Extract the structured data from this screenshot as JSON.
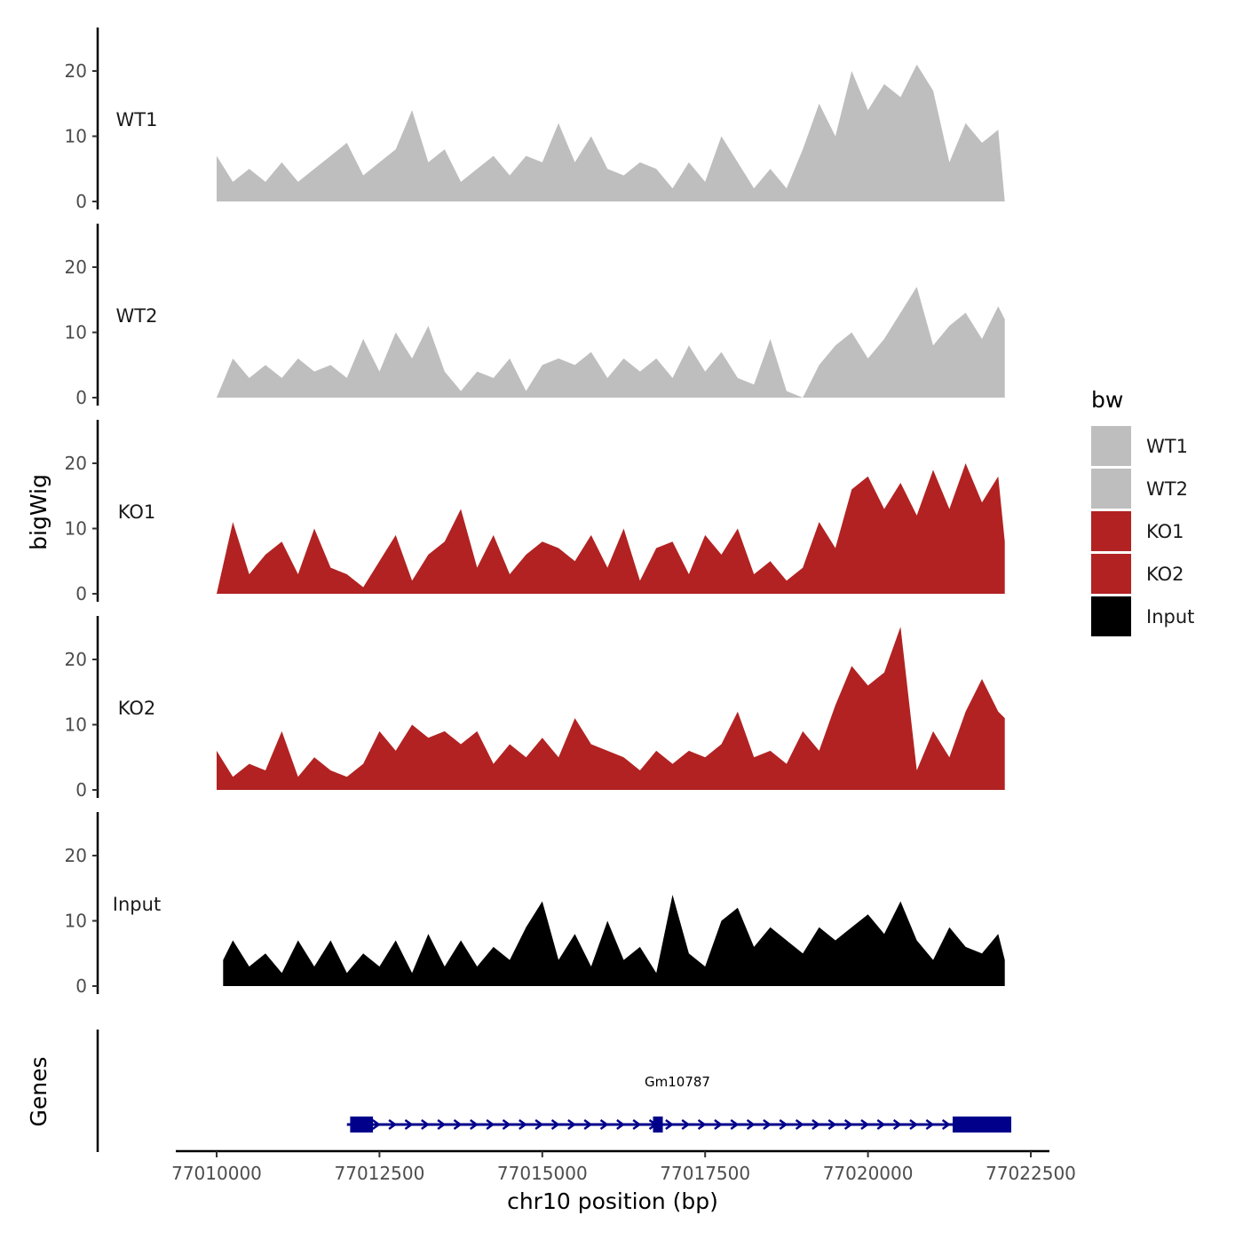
{
  "chart_data": {
    "type": "area",
    "ylabel": "bigWig",
    "xlabel": "chr10 position (bp)",
    "xlim": [
      77009750,
      77022750
    ],
    "ylim": [
      0,
      27
    ],
    "ytick_labels": [
      "0",
      "10",
      "20"
    ],
    "ytick_values": [
      0,
      10,
      20
    ],
    "xtick_labels": [
      "77010000",
      "77012500",
      "77015000",
      "77017500",
      "77020000",
      "77022500"
    ],
    "xtick_values": [
      77010000,
      77012500,
      77015000,
      77017500,
      77020000,
      77022500
    ],
    "legend": {
      "title": "bw",
      "placement": "right",
      "entries": [
        {
          "label": "WT1",
          "color": "#bebebe"
        },
        {
          "label": "WT2",
          "color": "#bebebe"
        },
        {
          "label": "KO1",
          "color": "#b22222"
        },
        {
          "label": "KO2",
          "color": "#b22222"
        },
        {
          "label": "Input",
          "color": "#000000"
        }
      ]
    },
    "tracks": [
      {
        "name": "WT1",
        "color": "#bebebe",
        "x": [
          77010000,
          77010250,
          77010500,
          77010750,
          77011000,
          77011250,
          77011500,
          77011750,
          77012000,
          77012250,
          77012500,
          77012750,
          77013000,
          77013250,
          77013500,
          77013750,
          77014000,
          77014250,
          77014500,
          77014750,
          77015000,
          77015250,
          77015500,
          77015750,
          77016000,
          77016250,
          77016500,
          77016750,
          77017000,
          77017250,
          77017500,
          77017750,
          77018000,
          77018250,
          77018500,
          77018750,
          77019000,
          77019250,
          77019500,
          77019750,
          77020000,
          77020250,
          77020500,
          77020750,
          77021000,
          77021250,
          77021500,
          77021750,
          77022000,
          77022100
        ],
        "values": [
          7,
          3,
          5,
          3,
          6,
          3,
          5,
          7,
          9,
          4,
          6,
          8,
          14,
          6,
          8,
          3,
          5,
          7,
          4,
          7,
          6,
          12,
          6,
          10,
          5,
          4,
          6,
          5,
          2,
          6,
          3,
          10,
          6,
          2,
          5,
          2,
          8,
          15,
          10,
          20,
          14,
          18,
          16,
          21,
          17,
          6,
          12,
          9,
          11,
          0
        ]
      },
      {
        "name": "WT2",
        "color": "#bebebe",
        "x": [
          77010000,
          77010250,
          77010500,
          77010750,
          77011000,
          77011250,
          77011500,
          77011750,
          77012000,
          77012250,
          77012500,
          77012750,
          77013000,
          77013250,
          77013500,
          77013750,
          77014000,
          77014250,
          77014500,
          77014750,
          77015000,
          77015250,
          77015500,
          77015750,
          77016000,
          77016250,
          77016500,
          77016750,
          77017000,
          77017250,
          77017500,
          77017750,
          77018000,
          77018250,
          77018500,
          77018750,
          77019000,
          77019250,
          77019500,
          77019750,
          77020000,
          77020250,
          77020500,
          77020750,
          77021000,
          77021250,
          77021500,
          77021750,
          77022000,
          77022100
        ],
        "values": [
          0,
          6,
          3,
          5,
          3,
          6,
          4,
          5,
          3,
          9,
          4,
          10,
          6,
          11,
          4,
          1,
          4,
          3,
          6,
          1,
          5,
          6,
          5,
          7,
          3,
          6,
          4,
          6,
          3,
          8,
          4,
          7,
          3,
          2,
          9,
          1,
          0,
          5,
          8,
          10,
          6,
          9,
          13,
          17,
          8,
          11,
          13,
          9,
          14,
          12
        ]
      },
      {
        "name": "KO1",
        "color": "#b22222",
        "x": [
          77010000,
          77010250,
          77010500,
          77010750,
          77011000,
          77011250,
          77011500,
          77011750,
          77012000,
          77012250,
          77012500,
          77012750,
          77013000,
          77013250,
          77013500,
          77013750,
          77014000,
          77014250,
          77014500,
          77014750,
          77015000,
          77015250,
          77015500,
          77015750,
          77016000,
          77016250,
          77016500,
          77016750,
          77017000,
          77017250,
          77017500,
          77017750,
          77018000,
          77018250,
          77018500,
          77018750,
          77019000,
          77019250,
          77019500,
          77019750,
          77020000,
          77020250,
          77020500,
          77020750,
          77021000,
          77021250,
          77021500,
          77021750,
          77022000,
          77022100
        ],
        "values": [
          0,
          11,
          3,
          6,
          8,
          3,
          10,
          4,
          3,
          1,
          5,
          9,
          2,
          6,
          8,
          13,
          4,
          9,
          3,
          6,
          8,
          7,
          5,
          9,
          4,
          10,
          2,
          7,
          8,
          3,
          9,
          6,
          10,
          3,
          5,
          2,
          4,
          11,
          7,
          16,
          18,
          13,
          17,
          12,
          19,
          13,
          20,
          14,
          18,
          8
        ]
      },
      {
        "name": "KO2",
        "color": "#b22222",
        "x": [
          77010000,
          77010250,
          77010500,
          77010750,
          77011000,
          77011250,
          77011500,
          77011750,
          77012000,
          77012250,
          77012500,
          77012750,
          77013000,
          77013250,
          77013500,
          77013750,
          77014000,
          77014250,
          77014500,
          77014750,
          77015000,
          77015250,
          77015500,
          77015750,
          77016000,
          77016250,
          77016500,
          77016750,
          77017000,
          77017250,
          77017500,
          77017750,
          77018000,
          77018250,
          77018500,
          77018750,
          77019000,
          77019250,
          77019500,
          77019750,
          77020000,
          77020250,
          77020500,
          77020750,
          77021000,
          77021250,
          77021500,
          77021750,
          77022000,
          77022100
        ],
        "values": [
          6,
          2,
          4,
          3,
          9,
          2,
          5,
          3,
          2,
          4,
          9,
          6,
          10,
          8,
          9,
          7,
          9,
          4,
          7,
          5,
          8,
          5,
          11,
          7,
          6,
          5,
          3,
          6,
          4,
          6,
          5,
          7,
          12,
          5,
          6,
          4,
          9,
          6,
          13,
          19,
          16,
          18,
          25,
          3,
          9,
          5,
          12,
          17,
          12,
          11
        ]
      },
      {
        "name": "Input",
        "color": "#000000",
        "x": [
          77010100,
          77010250,
          77010500,
          77010750,
          77011000,
          77011250,
          77011500,
          77011750,
          77012000,
          77012250,
          77012500,
          77012750,
          77013000,
          77013250,
          77013500,
          77013750,
          77014000,
          77014250,
          77014500,
          77014750,
          77015000,
          77015250,
          77015500,
          77015750,
          77016000,
          77016250,
          77016500,
          77016750,
          77017000,
          77017250,
          77017500,
          77017750,
          77018000,
          77018250,
          77018500,
          77018750,
          77019000,
          77019250,
          77019500,
          77019750,
          77020000,
          77020250,
          77020500,
          77020750,
          77021000,
          77021250,
          77021500,
          77021750,
          77022000,
          77022100
        ],
        "values": [
          4,
          7,
          3,
          5,
          2,
          7,
          3,
          7,
          2,
          5,
          3,
          7,
          2,
          8,
          3,
          7,
          3,
          6,
          4,
          9,
          13,
          4,
          8,
          3,
          10,
          4,
          6,
          2,
          14,
          5,
          3,
          10,
          12,
          6,
          9,
          7,
          5,
          9,
          7,
          9,
          11,
          8,
          13,
          7,
          4,
          9,
          6,
          5,
          8,
          4
        ]
      }
    ],
    "genes_track": {
      "label": "Genes",
      "gene_name": "Gm10787",
      "strand": "+",
      "color": "#00008b",
      "start": 77012000,
      "end": 77022200,
      "exons": [
        [
          77012050,
          77012400
        ],
        [
          77016700,
          77016850
        ],
        [
          77021300,
          77022200
        ]
      ]
    }
  }
}
